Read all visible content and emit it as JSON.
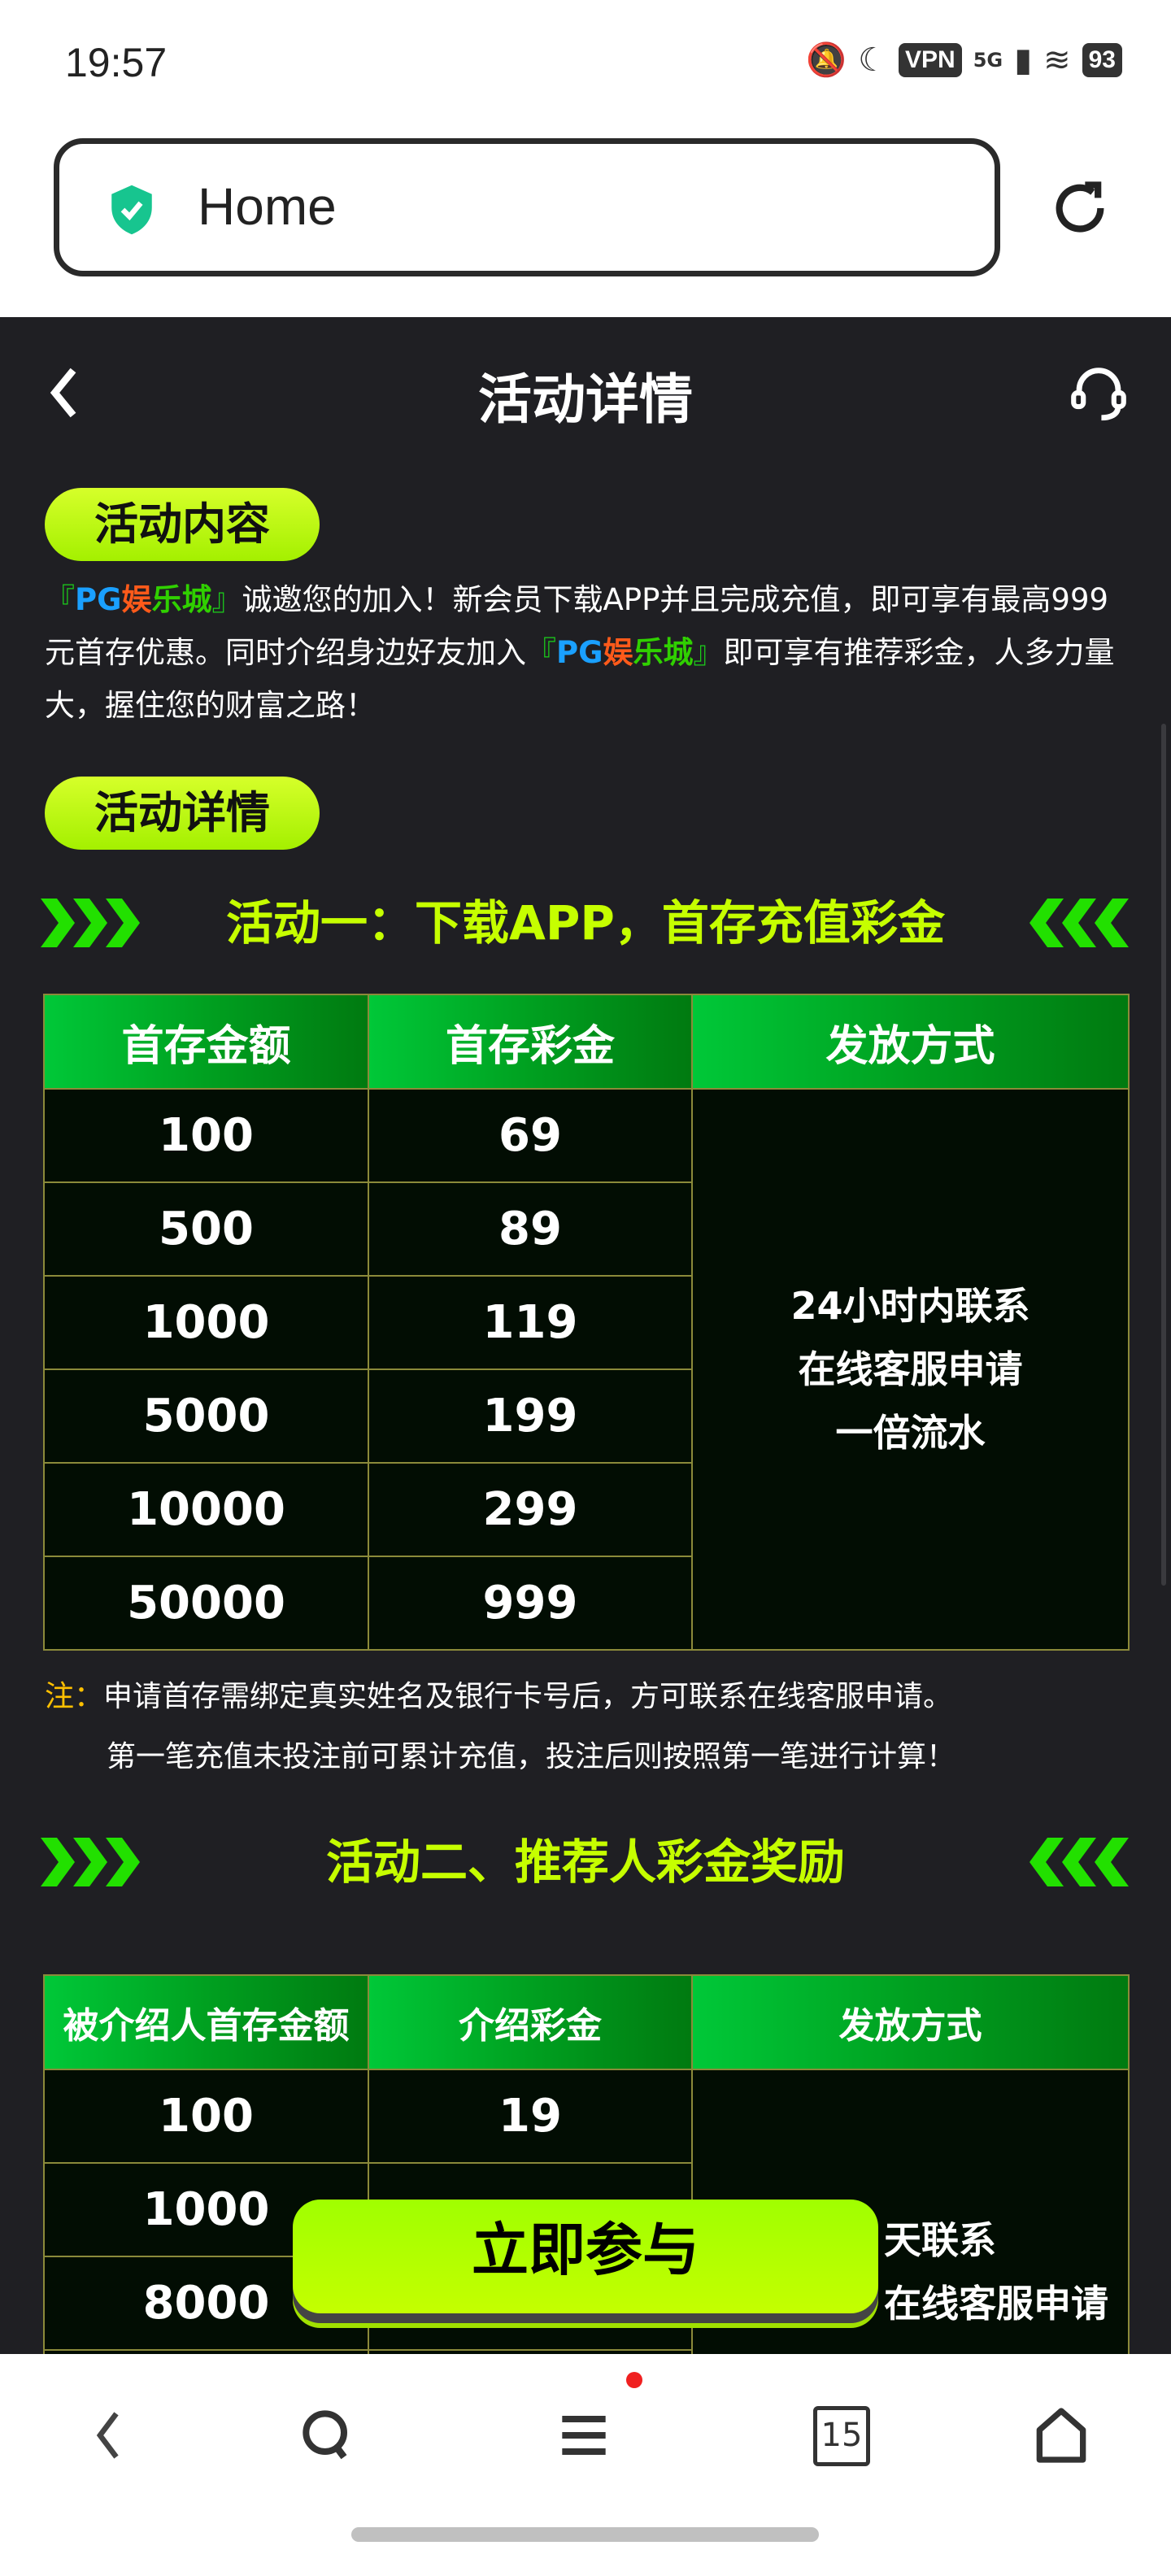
{
  "status_bar": {
    "time": "19:57",
    "vpn": "VPN",
    "network": "5G",
    "battery": "93"
  },
  "browser": {
    "url_text": "Home",
    "icons": [
      "shield-check-icon",
      "refresh-icon"
    ]
  },
  "header": {
    "title": "活动详情",
    "icons": [
      "back-icon",
      "headset-icon"
    ]
  },
  "content": {
    "pill1": "活动内容",
    "para": {
      "brand_open": "『",
      "brand_pg": "PG",
      "brand_yu": "娱",
      "brand_lc": "乐城",
      "brand_close": "』",
      "part1": "诚邀您的加入！新会员下载APP并且完成充值，即可享有最高999元首存优惠。同时介绍身边好友加入",
      "part2": "即可享有推荐彩金，人多力量大，握住您的财富之路！"
    },
    "pill2": "活动详情",
    "activity1": {
      "title": "活动一：下载APP，首存充值彩金",
      "headers": [
        "首存金额",
        "首存彩金",
        "发放方式"
      ],
      "rows": [
        [
          "100",
          "69"
        ],
        [
          "500",
          "89"
        ],
        [
          "1000",
          "119"
        ],
        [
          "5000",
          "199"
        ],
        [
          "10000",
          "299"
        ],
        [
          "50000",
          "999"
        ]
      ],
      "method": [
        "24小时内联系",
        "在线客服申请",
        "一倍流水"
      ]
    },
    "note": {
      "label": "注：",
      "line1": "申请首存需绑定真实姓名及银行卡号后，方可联系在线客服申请。",
      "line2": "第一笔充值未投注前可累计充值，投注后则按照第一笔进行计算！"
    },
    "activity2": {
      "title": "活动二、推荐人彩金奖励",
      "headers": [
        "被介绍人首存金额",
        "介绍彩金",
        "发放方式"
      ],
      "rows": [
        [
          "100",
          "19"
        ],
        [
          "1000",
          ""
        ],
        [
          "8000",
          ""
        ]
      ],
      "method": [
        "天联系",
        "在线客服申请"
      ]
    },
    "join_button": "立即参与"
  },
  "bottom_nav": {
    "tab_count": "15",
    "items": [
      "back-icon",
      "search-icon",
      "menu-icon",
      "tabs-icon",
      "home-icon"
    ]
  },
  "colors": {
    "accent": "#c6ff00",
    "page_bg": "#1f1f23",
    "table_header": "#00c838"
  }
}
